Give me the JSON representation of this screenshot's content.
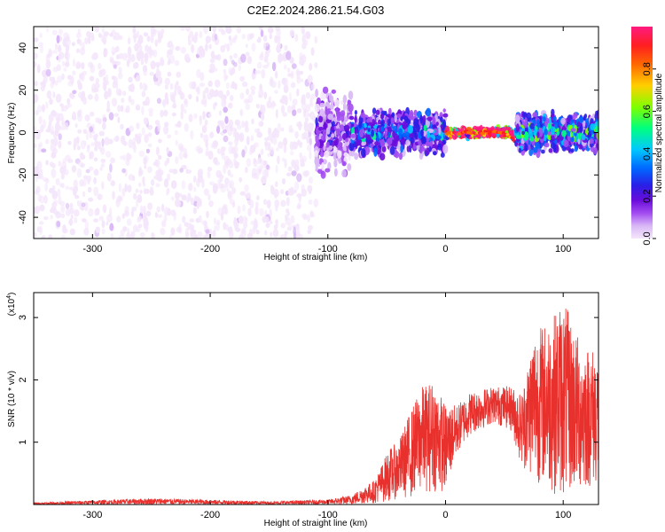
{
  "title": "C2E2.2024.286.21.54.G03",
  "chart_data": [
    {
      "type": "heatmap",
      "xlabel": "Height of straight line (km)",
      "ylabel": "Frequency (Hz)",
      "xlim": [
        -350,
        130
      ],
      "ylim": [
        -50,
        50
      ],
      "xticks": [
        -300,
        -200,
        -100,
        0,
        100
      ],
      "yticks": [
        -40,
        -20,
        0,
        20,
        40
      ],
      "colorbar": {
        "label": "Normalized spectral amplitude",
        "range": [
          0,
          1
        ],
        "ticks": [
          0.0,
          0.2,
          0.4,
          0.6,
          0.8
        ],
        "colormap": [
          "#f4e6fb",
          "#d9b8f6",
          "#a24cf0",
          "#6a0ddb",
          "#2a1ee6",
          "#0066ff",
          "#00c8ff",
          "#00ff80",
          "#7fff00",
          "#ffd000",
          "#ff6a00",
          "#ff1f1f",
          "#ff1a80"
        ]
      },
      "regions": [
        {
          "x": [
            -350,
            -110
          ],
          "freq_center": 0,
          "freq_halfwidth": 50,
          "amplitude": 0.05
        },
        {
          "x": [
            -110,
            -80
          ],
          "freq_center": 0,
          "freq_halfwidth": 22,
          "amplitude": 0.15
        },
        {
          "x": [
            -80,
            0
          ],
          "freq_center": 0,
          "freq_halfwidth": 12,
          "amplitude": 0.25
        },
        {
          "x": [
            0,
            60
          ],
          "freq_center": 0,
          "freq_halfwidth": 2,
          "amplitude": 0.85
        },
        {
          "x": [
            60,
            130
          ],
          "freq_center": 0,
          "freq_halfwidth": 10,
          "amplitude": 0.3
        }
      ]
    },
    {
      "type": "line",
      "xlabel": "Height of straight line (km)",
      "ylabel": "SNR (10 * v/v)",
      "yscale_label": "(x10",
      "yscale_exp": "4",
      "xlim": [
        -350,
        130
      ],
      "ylim": [
        0,
        3.4
      ],
      "xticks": [
        -300,
        -200,
        -100,
        0,
        100
      ],
      "yticks": [
        1,
        2,
        3
      ],
      "series": [
        {
          "color": "#e8312d",
          "envelope": [
            {
              "x": -350,
              "lo": 0.0,
              "hi": 0.03
            },
            {
              "x": -250,
              "lo": 0.0,
              "hi": 0.1
            },
            {
              "x": -150,
              "lo": 0.0,
              "hi": 0.05
            },
            {
              "x": -100,
              "lo": 0.0,
              "hi": 0.08
            },
            {
              "x": -80,
              "lo": 0.0,
              "hi": 0.15
            },
            {
              "x": -60,
              "lo": 0.02,
              "hi": 0.4
            },
            {
              "x": -48,
              "lo": 0.05,
              "hi": 0.9
            },
            {
              "x": -40,
              "lo": 0.1,
              "hi": 1.0
            },
            {
              "x": -30,
              "lo": 0.1,
              "hi": 1.5
            },
            {
              "x": -20,
              "lo": 0.2,
              "hi": 1.9
            },
            {
              "x": -10,
              "lo": 0.2,
              "hi": 2.0
            },
            {
              "x": 0,
              "lo": 0.2,
              "hi": 1.6
            },
            {
              "x": 10,
              "lo": 0.8,
              "hi": 1.6
            },
            {
              "x": 20,
              "lo": 1.1,
              "hi": 1.8
            },
            {
              "x": 40,
              "lo": 1.3,
              "hi": 1.9
            },
            {
              "x": 55,
              "lo": 1.2,
              "hi": 1.9
            },
            {
              "x": 65,
              "lo": 0.6,
              "hi": 1.8
            },
            {
              "x": 75,
              "lo": 0.4,
              "hi": 2.8
            },
            {
              "x": 90,
              "lo": 0.2,
              "hi": 3.0
            },
            {
              "x": 100,
              "lo": 0.1,
              "hi": 3.3
            },
            {
              "x": 115,
              "lo": 0.2,
              "hi": 2.6
            },
            {
              "x": 130,
              "lo": 0.3,
              "hi": 2.5
            }
          ]
        }
      ]
    }
  ]
}
